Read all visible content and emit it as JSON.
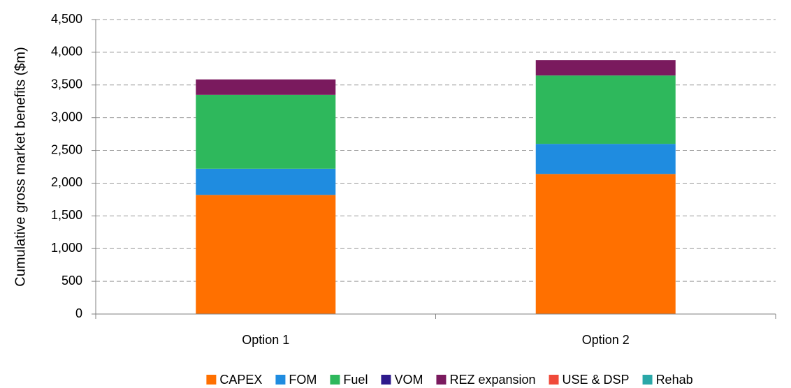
{
  "chart_data": {
    "type": "stacked_bar",
    "y_label": "Cumulative gross market benefits ($m)",
    "categories": [
      "Option 1",
      "Option 2"
    ],
    "series": [
      {
        "name": "CAPEX",
        "color": "#ff7000",
        "values": [
          1820,
          2140
        ]
      },
      {
        "name": "FOM",
        "color": "#1f8ce0",
        "values": [
          400,
          460
        ]
      },
      {
        "name": "Fuel",
        "color": "#2eb85c",
        "values": [
          1130,
          1045
        ]
      },
      {
        "name": "VOM",
        "color": "#2e1a8c",
        "values": [
          0,
          0
        ]
      },
      {
        "name": "REZ expansion",
        "color": "#7a1a5e",
        "values": [
          235,
          235
        ]
      },
      {
        "name": "USE & DSP",
        "color": "#f04a3a",
        "values": [
          0,
          0
        ]
      },
      {
        "name": "Rehab",
        "color": "#2aa8a8",
        "values": [
          0,
          0
        ]
      }
    ],
    "ylim": [
      0,
      4500
    ],
    "yticks": [
      0,
      500,
      {
        "value": 1000,
        "label": "1,000"
      },
      {
        "value": 1500,
        "label": "1,500"
      },
      {
        "value": 2000,
        "label": "2,000"
      },
      {
        "value": 2500,
        "label": "2,500"
      },
      {
        "value": 3000,
        "label": "3,000"
      },
      {
        "value": 3500,
        "label": "3,500"
      },
      {
        "value": 4000,
        "label": "4,000"
      },
      {
        "value": 4500,
        "label": "4,500"
      }
    ],
    "grid": true
  }
}
